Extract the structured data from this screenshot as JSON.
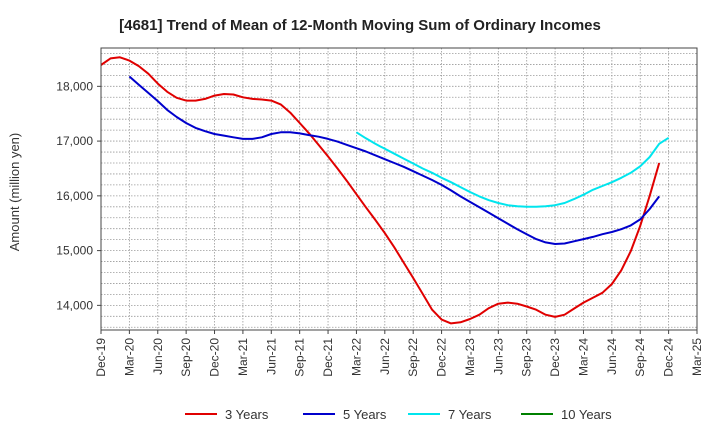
{
  "chart_data": {
    "type": "line",
    "title": "[4681]  Trend of Mean of 12-Month Moving Sum of Ordinary Incomes",
    "xlabel": "",
    "ylabel": "Amount (million yen)",
    "ylim": [
      13550,
      18700
    ],
    "y_ticks": [
      14000,
      15000,
      16000,
      17000,
      18000
    ],
    "y_tick_labels": [
      "14,000",
      "15,000",
      "16,000",
      "17,000",
      "18,000"
    ],
    "x_ticks": [
      "Dec-19",
      "Mar-20",
      "Jun-20",
      "Sep-20",
      "Dec-20",
      "Mar-21",
      "Jun-21",
      "Sep-21",
      "Dec-21",
      "Mar-22",
      "Jun-22",
      "Sep-22",
      "Dec-22",
      "Mar-23",
      "Jun-23",
      "Sep-23",
      "Dec-23",
      "Mar-24",
      "Jun-24",
      "Sep-24",
      "Dec-24",
      "Mar-25"
    ],
    "x_range_months": [
      0,
      63
    ],
    "grid": true,
    "legend_position": "bottom",
    "series": [
      {
        "name": "3 Years",
        "color": "#e00000",
        "start_month": 0,
        "values": [
          18390,
          18510,
          18530,
          18470,
          18370,
          18230,
          18050,
          17900,
          17790,
          17740,
          17740,
          17770,
          17830,
          17860,
          17850,
          17800,
          17770,
          17760,
          17740,
          17670,
          17520,
          17330,
          17140,
          16930,
          16720,
          16500,
          16270,
          16030,
          15790,
          15560,
          15320,
          15060,
          14780,
          14500,
          14210,
          13920,
          13740,
          13670,
          13690,
          13750,
          13830,
          13950,
          14030,
          14050,
          14030,
          13980,
          13920,
          13830,
          13790,
          13830,
          13940,
          14050,
          14140,
          14230,
          14390,
          14640,
          14990,
          15450,
          16000,
          16600
        ]
      },
      {
        "name": "5 Years",
        "color": "#0000cc",
        "start_month": 3,
        "values": [
          18180,
          18030,
          17880,
          17730,
          17570,
          17440,
          17330,
          17240,
          17180,
          17130,
          17100,
          17070,
          17040,
          17040,
          17070,
          17130,
          17160,
          17160,
          17140,
          17110,
          17080,
          17040,
          16990,
          16930,
          16870,
          16810,
          16740,
          16670,
          16600,
          16530,
          16450,
          16370,
          16290,
          16200,
          16100,
          15990,
          15890,
          15790,
          15690,
          15590,
          15490,
          15390,
          15300,
          15210,
          15150,
          15120,
          15130,
          15170,
          15210,
          15250,
          15300,
          15340,
          15390,
          15460,
          15570,
          15760,
          15990
        ]
      },
      {
        "name": "7 Years",
        "color": "#00e5ee",
        "start_month": 27,
        "values": [
          17160,
          17050,
          16950,
          16860,
          16770,
          16680,
          16590,
          16500,
          16420,
          16330,
          16250,
          16160,
          16070,
          15990,
          15920,
          15870,
          15830,
          15810,
          15800,
          15800,
          15810,
          15830,
          15870,
          15940,
          16020,
          16110,
          16180,
          16250,
          16330,
          16420,
          16540,
          16710,
          16950,
          17060
        ]
      },
      {
        "name": "10 Years",
        "color": "#008000",
        "start_month": 0,
        "values": []
      }
    ]
  }
}
